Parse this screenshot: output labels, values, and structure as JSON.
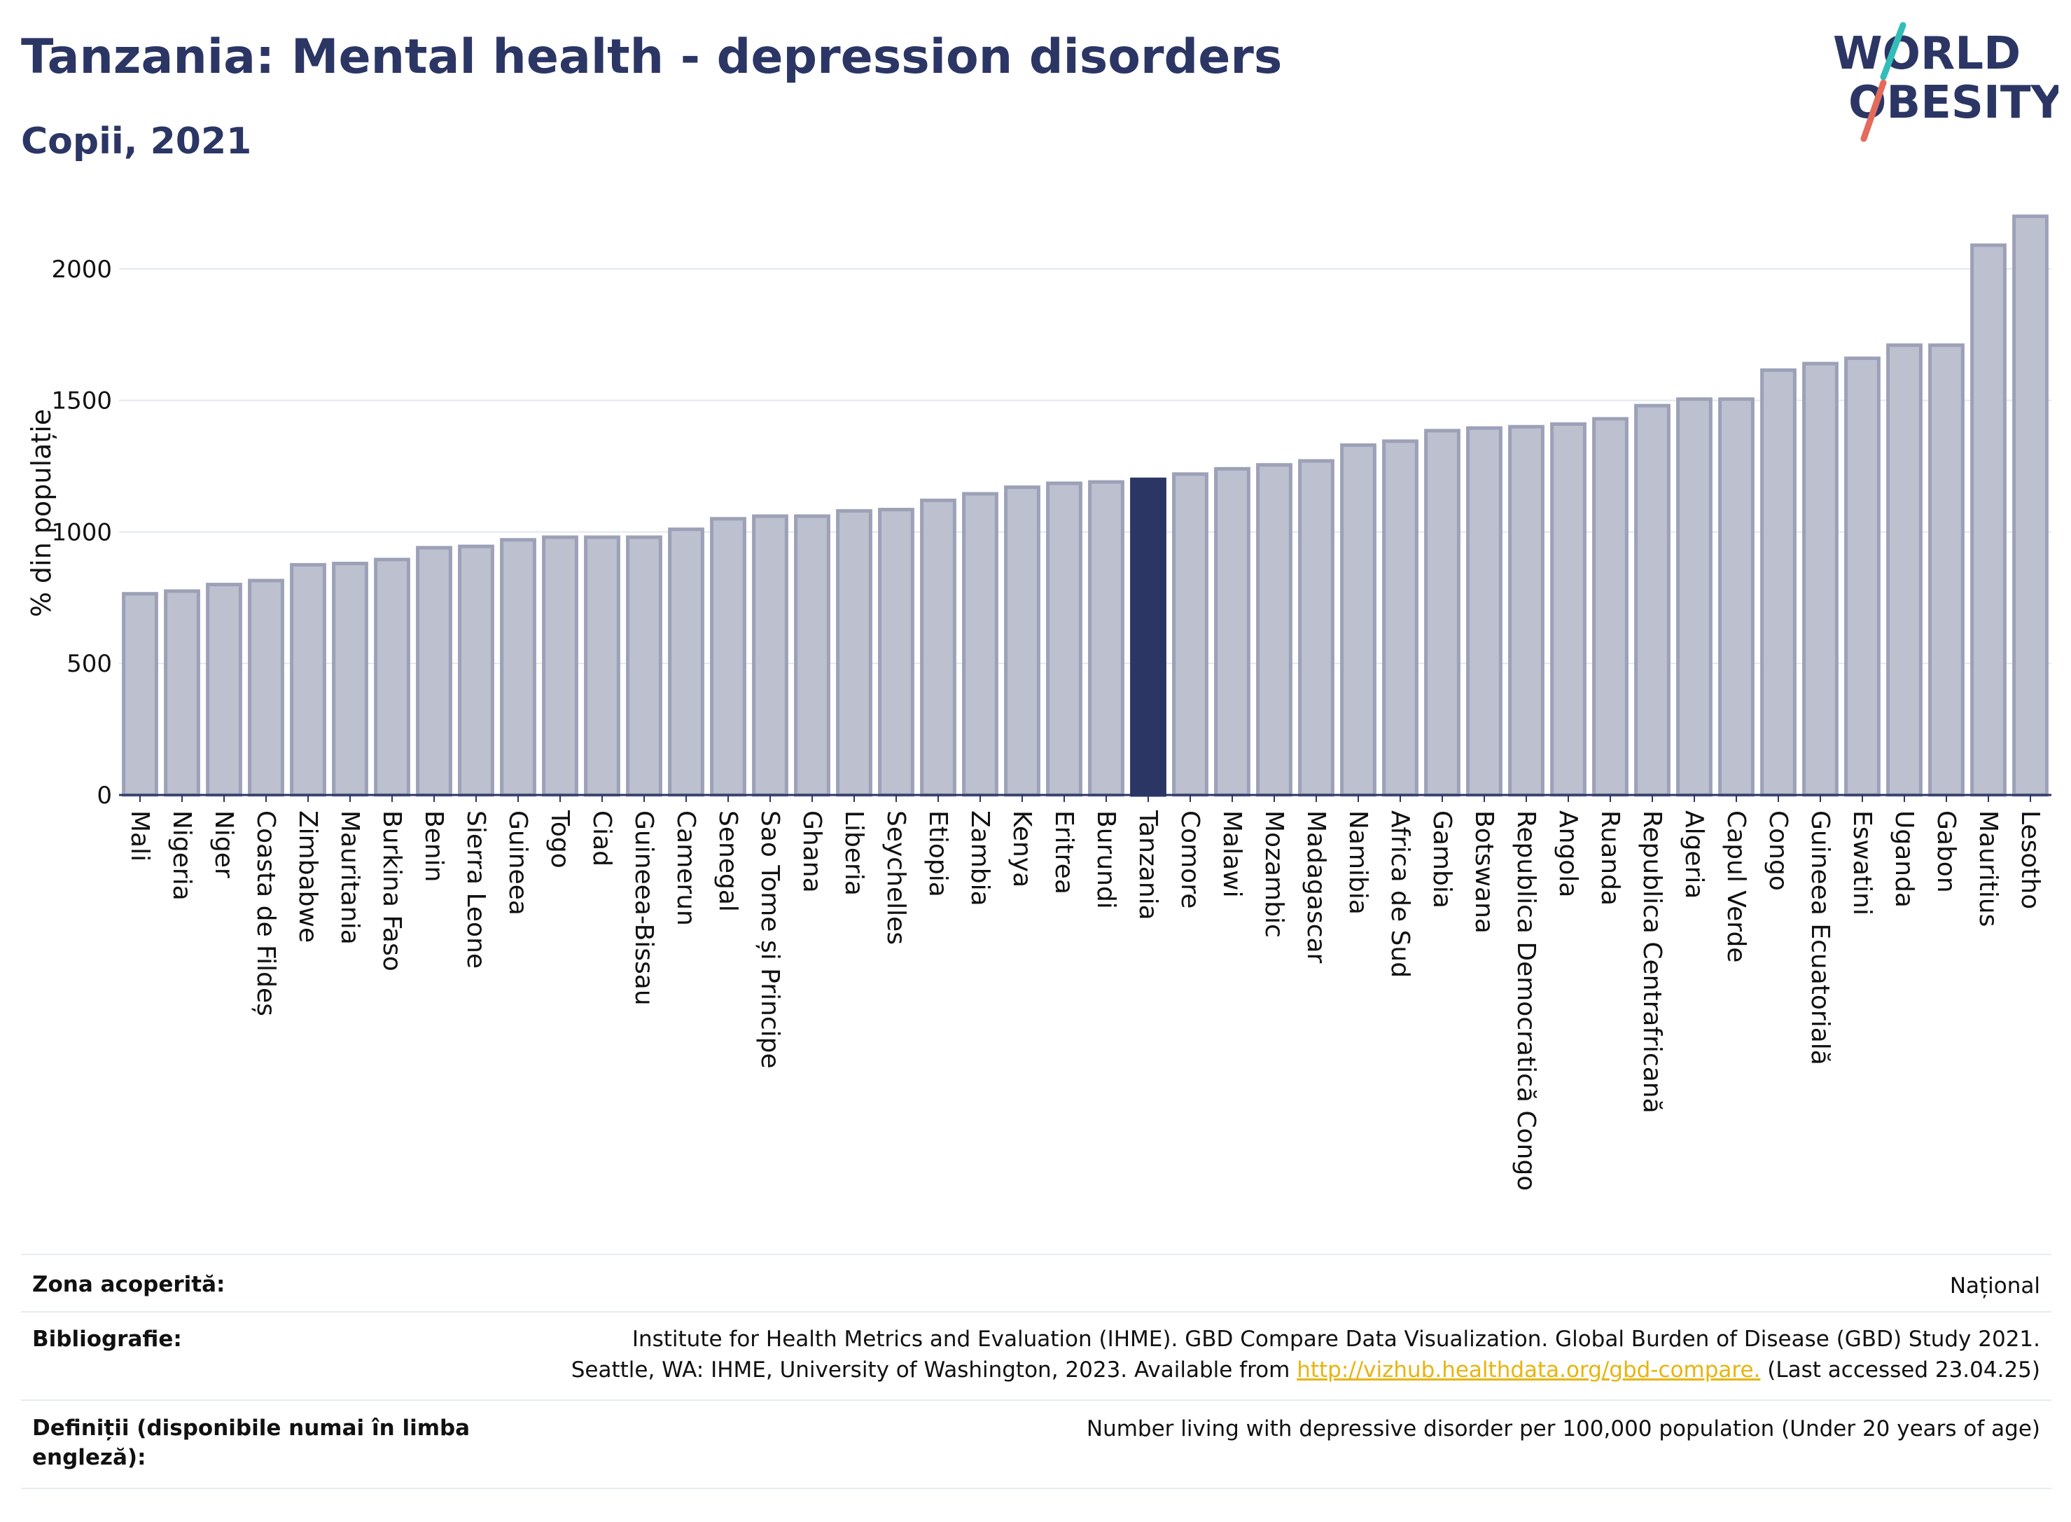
{
  "header": {
    "title": "Tanzania: Mental health - depression disorders",
    "subtitle": "Copii, 2021",
    "logo_line1": "WORLD",
    "logo_line2": "OBESITY"
  },
  "colors": {
    "bar": "#bcc0cf",
    "bar_stroke": "#9ca1b8",
    "highlight": "#2b3665",
    "text": "#2b3665",
    "logo_teal": "#33bdb9",
    "logo_coral": "#e46b5c"
  },
  "chart_data": {
    "type": "bar",
    "title": "Tanzania: Mental health - depression disorders",
    "subtitle": "Copii, 2021",
    "ylabel": "% din populație",
    "xlabel": "",
    "ylim": [
      0,
      2250
    ],
    "yticks": [
      0,
      500,
      1000,
      1500,
      2000
    ],
    "grid": true,
    "highlight": "Tanzania",
    "categories": [
      "Mali",
      "Nigeria",
      "Niger",
      "Coasta de Fildeș",
      "Zimbabwe",
      "Mauritania",
      "Burkina Faso",
      "Benin",
      "Sierra Leone",
      "Guineea",
      "Togo",
      "Ciad",
      "Guineea-Bissau",
      "Camerun",
      "Senegal",
      "Sao Tome și Principe",
      "Ghana",
      "Liberia",
      "Seychelles",
      "Etiopia",
      "Zambia",
      "Kenya",
      "Eritrea",
      "Burundi",
      "Tanzania",
      "Comore",
      "Malawi",
      "Mozambic",
      "Madagascar",
      "Namibia",
      "Africa de Sud",
      "Gambia",
      "Botswana",
      "Republica Democratică Congo",
      "Angola",
      "Ruanda",
      "Republica Centrafricană",
      "Algeria",
      "Capul Verde",
      "Congo",
      "Guineea Ecuatorială",
      "Eswatini",
      "Uganda",
      "Gabon",
      "Mauritius",
      "Lesotho"
    ],
    "values": [
      765,
      775,
      800,
      815,
      875,
      880,
      895,
      940,
      945,
      970,
      980,
      980,
      980,
      1010,
      1050,
      1060,
      1060,
      1080,
      1085,
      1120,
      1145,
      1170,
      1185,
      1190,
      1200,
      1220,
      1240,
      1255,
      1270,
      1330,
      1345,
      1385,
      1395,
      1400,
      1410,
      1430,
      1480,
      1505,
      1505,
      1615,
      1640,
      1660,
      1710,
      1710,
      2090,
      2200
    ]
  },
  "info": {
    "coverage_label": "Zona acoperită:",
    "coverage_value": "Național",
    "bibliography_label": "Bibliografie:",
    "bibliography_line1": "Institute for Health Metrics and Evaluation (IHME). GBD Compare Data Visualization. Global Burden of Disease (GBD) Study 2021.",
    "bibliography_line2_pre": "Seattle, WA: IHME, University of Washington, 2023. Available from ",
    "bibliography_link": "http://vizhub.healthdata.org/gbd-compare.",
    "bibliography_line2_post": " (Last accessed 23.04.25)",
    "definitions_label_line1": "Definiții (disponibile numai în limba",
    "definitions_label_line2": "engleză):",
    "definitions_value": "Number living with depressive disorder per 100,000 population (Under 20 years of age)"
  }
}
